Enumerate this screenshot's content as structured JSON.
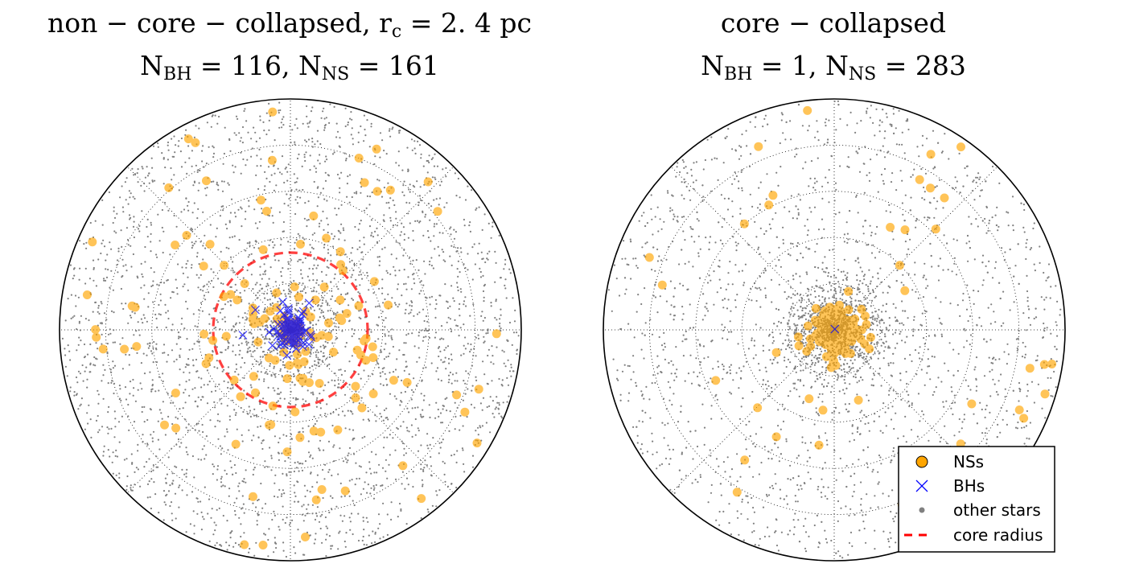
{
  "panels": [
    {
      "id": "left",
      "title_line1": {
        "prefix": "non − core − collapsed, r",
        "sub": "c",
        "suffix": " = 2. 4 pc"
      },
      "title_line2": {
        "n": "N",
        "sub1": "BH",
        "mid": " = 116, N",
        "sub2": "NS",
        "suffix": " = 161"
      }
    },
    {
      "id": "right",
      "title_line1": {
        "prefix": "core − collapsed",
        "sub": "",
        "suffix": ""
      },
      "title_line2": {
        "n": "N",
        "sub1": "BH",
        "mid": " = 1, N",
        "sub2": "NS",
        "suffix": " = 283"
      }
    }
  ],
  "legend": {
    "items": [
      {
        "label": "NSs",
        "marker": "circle",
        "color": "#ffa500"
      },
      {
        "label": "BHs",
        "marker": "x",
        "color": "#0000ff"
      },
      {
        "label": "other stars",
        "marker": "dot",
        "color": "#808080"
      },
      {
        "label": "core radius",
        "marker": "dashed-line",
        "color": "#ff0000"
      }
    ]
  },
  "chart_data": [
    {
      "type": "scatter",
      "projection": "polar",
      "title": "non − core − collapsed, rc = 2.4 pc; NBH = 116, NNS = 161",
      "grid": true,
      "core_radius_pc": 2.4,
      "n_bh": 116,
      "n_ns": 161,
      "series": [
        {
          "name": "NSs",
          "color": "#ffa500",
          "marker": "circle",
          "count": 161
        },
        {
          "name": "BHs",
          "color": "#0000ff",
          "marker": "x",
          "count": 116
        },
        {
          "name": "other stars",
          "color": "#808080",
          "marker": "dot"
        },
        {
          "name": "core radius",
          "color": "#ff0000",
          "marker": "dashed-line"
        }
      ]
    },
    {
      "type": "scatter",
      "projection": "polar",
      "title": "core − collapsed; NBH = 1, NNS = 283",
      "grid": true,
      "n_bh": 1,
      "n_ns": 283,
      "legend_position": "lower-right",
      "series": [
        {
          "name": "NSs",
          "color": "#ffa500",
          "marker": "circle",
          "count": 283
        },
        {
          "name": "BHs",
          "color": "#0000ff",
          "marker": "x",
          "count": 1
        },
        {
          "name": "other stars",
          "color": "#808080",
          "marker": "dot"
        }
      ]
    }
  ]
}
